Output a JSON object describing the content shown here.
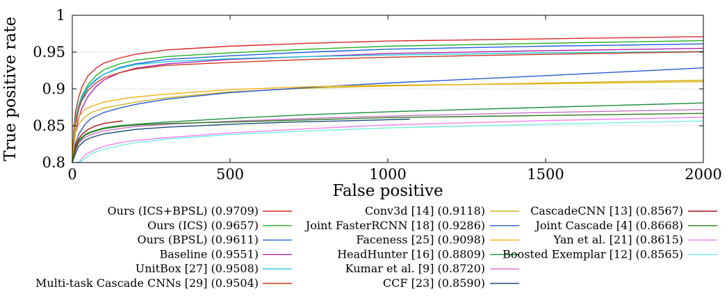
{
  "chart_data": {
    "type": "line",
    "xlabel": "False positive",
    "ylabel": "True positive rate",
    "xlim": [
      0,
      2000
    ],
    "ylim": [
      0.8,
      1.0
    ],
    "xticks": [
      "0",
      "500",
      "1000",
      "1500",
      "2000"
    ],
    "yticks": [
      "0.8",
      "0.85",
      "0.9",
      "0.95",
      "1"
    ],
    "grid": "dotted",
    "legend_position": "bottom",
    "series": [
      {
        "name": "Ours (ICS+BPSL) (0.9709)",
        "color": "#d62728",
        "x": [
          0,
          5,
          10,
          20,
          30,
          50,
          75,
          100,
          150,
          200,
          300,
          500,
          750,
          1000,
          1500,
          2000
        ],
        "y": [
          0.8,
          0.845,
          0.868,
          0.888,
          0.902,
          0.918,
          0.928,
          0.935,
          0.942,
          0.947,
          0.953,
          0.958,
          0.962,
          0.965,
          0.968,
          0.971
        ]
      },
      {
        "name": "Ours (ICS) (0.9657)",
        "color": "#22b022",
        "x": [
          0,
          5,
          10,
          20,
          30,
          50,
          75,
          100,
          150,
          200,
          300,
          500,
          750,
          1000,
          1500,
          2000
        ],
        "y": [
          0.8,
          0.838,
          0.86,
          0.878,
          0.89,
          0.906,
          0.918,
          0.926,
          0.934,
          0.939,
          0.944,
          0.949,
          0.954,
          0.958,
          0.962,
          0.9657
        ]
      },
      {
        "name": "Ours (BPSL) (0.9611)",
        "color": "#1f5fe0",
        "x": [
          0,
          5,
          10,
          20,
          30,
          50,
          75,
          100,
          150,
          200,
          300,
          500,
          750,
          1000,
          1500,
          2000
        ],
        "y": [
          0.8,
          0.83,
          0.852,
          0.872,
          0.886,
          0.902,
          0.912,
          0.92,
          0.929,
          0.934,
          0.94,
          0.945,
          0.95,
          0.954,
          0.958,
          0.9611
        ]
      },
      {
        "name": "Baseline (0.9551)",
        "color": "#b020b0",
        "x": [
          0,
          5,
          10,
          20,
          30,
          50,
          75,
          100,
          150,
          200,
          300,
          500,
          750,
          1000,
          1500,
          2000
        ],
        "y": [
          0.8,
          0.82,
          0.84,
          0.86,
          0.873,
          0.89,
          0.903,
          0.912,
          0.922,
          0.928,
          0.934,
          0.94,
          0.944,
          0.948,
          0.952,
          0.9551
        ]
      },
      {
        "name": "UnitBox [27] (0.9508)",
        "color": "#20c8d8",
        "x": [
          0,
          5,
          10,
          20,
          30,
          50,
          75,
          100,
          150,
          200,
          300,
          500,
          750,
          1000,
          1500,
          2000
        ],
        "y": [
          0.8,
          0.835,
          0.858,
          0.876,
          0.888,
          0.903,
          0.913,
          0.92,
          0.928,
          0.933,
          0.937,
          0.941,
          0.944,
          0.946,
          0.949,
          0.9508
        ]
      },
      {
        "name": "Multi-task Cascade CNNs [29] (0.9504)",
        "color": "#c8381c",
        "x": [
          0,
          5,
          10,
          20,
          30,
          50,
          75,
          100,
          150,
          200,
          300,
          500,
          750,
          1000,
          1500,
          2000
        ],
        "y": [
          0.8,
          0.832,
          0.852,
          0.872,
          0.884,
          0.898,
          0.908,
          0.915,
          0.922,
          0.927,
          0.932,
          0.936,
          0.94,
          0.943,
          0.947,
          0.9504
        ]
      },
      {
        "name": "Conv3d [14] (0.9118)",
        "color": "#c8b41c",
        "x": [
          0,
          10,
          20,
          40,
          60,
          100,
          150,
          200,
          300,
          500,
          750,
          1000,
          1500,
          2000
        ],
        "y": [
          0.8,
          0.84,
          0.852,
          0.862,
          0.868,
          0.874,
          0.878,
          0.882,
          0.888,
          0.896,
          0.901,
          0.904,
          0.908,
          0.9118
        ]
      },
      {
        "name": "Joint FasterRCNN [18] (0.9286)",
        "color": "#2858d0",
        "x": [
          0,
          10,
          20,
          40,
          60,
          100,
          150,
          200,
          300,
          500,
          750,
          1000,
          1500,
          2000
        ],
        "y": [
          0.8,
          0.826,
          0.838,
          0.852,
          0.86,
          0.868,
          0.874,
          0.879,
          0.886,
          0.895,
          0.902,
          0.908,
          0.918,
          0.9286
        ]
      },
      {
        "name": "Faceness [25] (0.9098)",
        "color": "#f0b010",
        "x": [
          0,
          10,
          20,
          40,
          60,
          100,
          150,
          200,
          300,
          500,
          750,
          1000,
          1500,
          2000
        ],
        "y": [
          0.8,
          0.85,
          0.862,
          0.872,
          0.876,
          0.882,
          0.886,
          0.889,
          0.893,
          0.899,
          0.903,
          0.905,
          0.907,
          0.9098
        ]
      },
      {
        "name": "HeadHunter [16] (0.8809)",
        "color": "#1c8c40",
        "x": [
          0,
          10,
          20,
          40,
          60,
          100,
          150,
          200,
          300,
          500,
          750,
          1000,
          1500,
          2000
        ],
        "y": [
          0.8,
          0.82,
          0.83,
          0.838,
          0.842,
          0.847,
          0.85,
          0.852,
          0.855,
          0.86,
          0.865,
          0.869,
          0.875,
          0.8809
        ]
      },
      {
        "name": "Kumar et al. [9] (0.8720)",
        "color": "#c870c8",
        "x": [
          0,
          10,
          20,
          40,
          60,
          100,
          150,
          200,
          300,
          500,
          750,
          1000,
          1500,
          2000
        ],
        "y": [
          0.8,
          0.816,
          0.826,
          0.834,
          0.838,
          0.843,
          0.846,
          0.849,
          0.852,
          0.856,
          0.86,
          0.863,
          0.868,
          0.872
        ]
      },
      {
        "name": "CCF [23] (0.8590)",
        "color": "#1c4c78",
        "x": [
          0,
          10,
          20,
          40,
          60,
          100,
          150,
          200,
          300,
          500,
          700,
          900,
          1070
        ],
        "y": [
          0.8,
          0.812,
          0.822,
          0.83,
          0.834,
          0.839,
          0.842,
          0.845,
          0.848,
          0.852,
          0.855,
          0.857,
          0.859
        ]
      },
      {
        "name": "CascadeCNN [13] (0.8567)",
        "color": "#a01010",
        "x": [
          0,
          5,
          10,
          20,
          30,
          50,
          75,
          100,
          130,
          160
        ],
        "y": [
          0.8,
          0.812,
          0.822,
          0.832,
          0.838,
          0.845,
          0.85,
          0.853,
          0.855,
          0.8567
        ]
      },
      {
        "name": "Joint Cascade [4] (0.8668)",
        "color": "#2c7c1c",
        "x": [
          0,
          10,
          20,
          40,
          60,
          100,
          150,
          200,
          300,
          500,
          750,
          1000,
          1500,
          2000
        ],
        "y": [
          0.8,
          0.818,
          0.828,
          0.837,
          0.841,
          0.846,
          0.849,
          0.851,
          0.853,
          0.855,
          0.858,
          0.861,
          0.864,
          0.8668
        ]
      },
      {
        "name": "Yan et al. [21] (0.8615)",
        "color": "#f080f0",
        "x": [
          0,
          20,
          40,
          60,
          100,
          150,
          200,
          300,
          500,
          750,
          1000,
          1500,
          2000
        ],
        "y": [
          0.78,
          0.8,
          0.81,
          0.815,
          0.822,
          0.827,
          0.83,
          0.834,
          0.84,
          0.846,
          0.851,
          0.857,
          0.8615
        ]
      },
      {
        "name": "Boosted Exemplar [12] (0.8565)",
        "color": "#70f0e0",
        "x": [
          0,
          20,
          40,
          60,
          100,
          150,
          200,
          300,
          500,
          750,
          1000,
          1500,
          2000
        ],
        "y": [
          0.78,
          0.795,
          0.805,
          0.812,
          0.818,
          0.823,
          0.827,
          0.832,
          0.838,
          0.843,
          0.847,
          0.852,
          0.8565
        ]
      }
    ]
  }
}
